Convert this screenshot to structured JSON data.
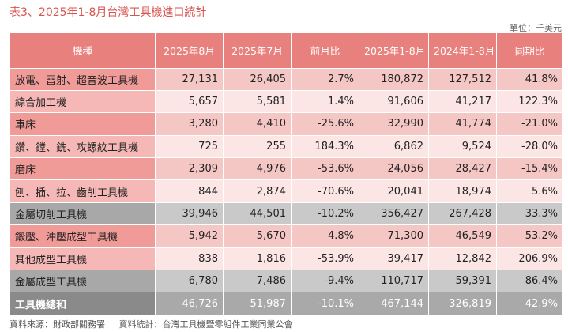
{
  "title": "表3、2025年1-8月台灣工具機進口統計",
  "unit": "單位：千美元",
  "columns": [
    "機種",
    "2025年8月",
    "2025年7月",
    "前月比",
    "2025年1-8月",
    "2024年1-8月",
    "同期比"
  ],
  "rows": [
    {
      "name": "放電、雷射、超音波工具機",
      "aug": "27,131",
      "jul": "26,405",
      "mom": "2.7%",
      "ytd25": "180,872",
      "ytd24": "127,512",
      "yoy": "41.8%",
      "style": "c-dark"
    },
    {
      "name": "綜合加工機",
      "aug": "5,657",
      "jul": "5,581",
      "mom": "1.4%",
      "ytd25": "91,606",
      "ytd24": "41,217",
      "yoy": "122.3%",
      "style": "c-light"
    },
    {
      "name": "車床",
      "aug": "3,280",
      "jul": "4,410",
      "mom": "-25.6%",
      "ytd25": "32,990",
      "ytd24": "41,774",
      "yoy": "-21.0%",
      "style": "c-dark"
    },
    {
      "name": "鑽、鏜、銑、攻螺紋工具機",
      "aug": "725",
      "jul": "255",
      "mom": "184.3%",
      "ytd25": "6,862",
      "ytd24": "9,524",
      "yoy": "-28.0%",
      "style": "c-light"
    },
    {
      "name": "磨床",
      "aug": "2,309",
      "jul": "4,976",
      "mom": "-53.6%",
      "ytd25": "24,056",
      "ytd24": "28,427",
      "yoy": "-15.4%",
      "style": "c-dark"
    },
    {
      "name": "刨、插、拉、齒削工具機",
      "aug": "844",
      "jul": "2,874",
      "mom": "-70.6%",
      "ytd25": "20,041",
      "ytd24": "18,974",
      "yoy": "5.6%",
      "style": "c-light"
    },
    {
      "name": "金屬切削工具機",
      "aug": "39,946",
      "jul": "44,501",
      "mom": "-10.2%",
      "ytd25": "356,427",
      "ytd24": "267,428",
      "yoy": "33.3%",
      "style": "c-sub"
    },
    {
      "name": "鍛壓、沖壓成型工具機",
      "aug": "5,942",
      "jul": "5,670",
      "mom": "4.8%",
      "ytd25": "71,300",
      "ytd24": "46,549",
      "yoy": "53.2%",
      "style": "c-dark"
    },
    {
      "name": "其他成型工具機",
      "aug": "838",
      "jul": "1,816",
      "mom": "-53.9%",
      "ytd25": "39,417",
      "ytd24": "12,842",
      "yoy": "206.9%",
      "style": "c-light"
    },
    {
      "name": "金屬成型工具機",
      "aug": "6,780",
      "jul": "7,486",
      "mom": "-9.4%",
      "ytd25": "110,717",
      "ytd24": "59,391",
      "yoy": "86.4%",
      "style": "c-sub"
    },
    {
      "name": "工具機總和",
      "aug": "46,726",
      "jul": "51,987",
      "mom": "-10.1%",
      "ytd25": "467,144",
      "ytd24": "326,819",
      "yoy": "42.9%",
      "style": "c-total"
    }
  ],
  "footer": {
    "source": "資料來源：財政部關務署",
    "compiled": "資料統計：台灣工具機暨零組件工業同業公會"
  },
  "colors": {
    "title": "#d9534f",
    "header": "#e8807d",
    "row_dark": "#f4c7c5",
    "row_light": "#fbe6e5",
    "subtotal": "#c9c9c9",
    "total": "#a9a9a9"
  }
}
